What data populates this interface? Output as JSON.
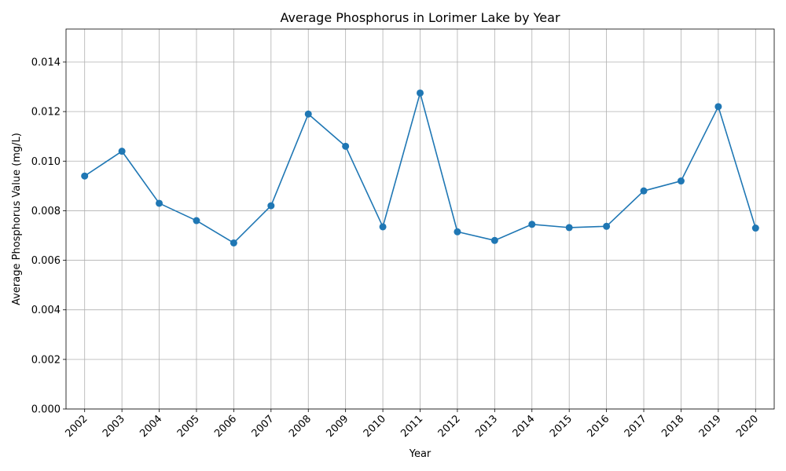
{
  "chart_data": {
    "type": "line",
    "title": "Average Phosphorus in Lorimer Lake by Year",
    "xlabel": "Year",
    "ylabel": "Average Phosphorus Value (mg/L)",
    "x": [
      "2002",
      "2003",
      "2004",
      "2005",
      "2006",
      "2007",
      "2008",
      "2009",
      "2010",
      "2011",
      "2012",
      "2013",
      "2014",
      "2015",
      "2016",
      "2017",
      "2018",
      "2019",
      "2020"
    ],
    "series": [
      {
        "name": "",
        "color": "#1f77b4",
        "values": [
          0.0094,
          0.0104,
          0.0083,
          0.0076,
          0.0067,
          0.0082,
          0.0119,
          0.0106,
          0.00735,
          0.01275,
          0.00715,
          0.0068,
          0.00745,
          0.00732,
          0.00737,
          0.0088,
          0.0092,
          0.0122,
          0.0073
        ]
      }
    ],
    "ylim": [
      0,
      0.01533
    ],
    "yticks": [
      "0.000",
      "0.002",
      "0.004",
      "0.006",
      "0.008",
      "0.010",
      "0.012",
      "0.014"
    ],
    "grid": true
  }
}
